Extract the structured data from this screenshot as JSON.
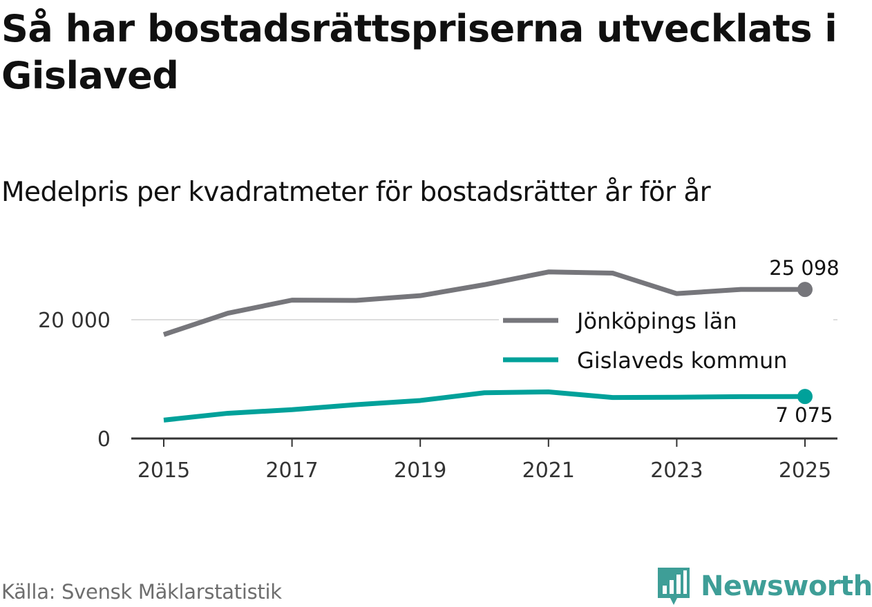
{
  "header": {
    "title": "Så har bostadsrättspriserna utvecklats i Gislaved",
    "subtitle": "Medelpris per kvadratmeter för bostadsrätter år för år"
  },
  "footer": {
    "source": "Källa: Svensk Mäklarstatistik",
    "brand": "Newsworthy"
  },
  "colors": {
    "series_lan": "#76767b",
    "series_kommun": "#00a19a",
    "grid": "#dddddd",
    "axis": "#333333",
    "brand": "#3e9e97"
  },
  "icons": {
    "brand_logo": "newsworthy-bar-chart-icon"
  },
  "chart_data": {
    "type": "line",
    "title": "Så har bostadsrättspriserna utvecklats i Gislaved",
    "subtitle": "Medelpris per kvadratmeter för bostadsrätter år för år",
    "xlabel": "",
    "ylabel": "",
    "x": [
      2015,
      2016,
      2017,
      2018,
      2019,
      2020,
      2021,
      2022,
      2023,
      2024,
      2025
    ],
    "x_ticks": [
      2015,
      2017,
      2019,
      2021,
      2023,
      2025
    ],
    "y_ticks": [
      0,
      20000
    ],
    "y_tick_labels": [
      "0",
      "20 000"
    ],
    "ylim": [
      0,
      30000
    ],
    "grid": true,
    "legend_position": "right",
    "series": [
      {
        "name": "Jönköpings län",
        "color": "#76767b",
        "values": [
          17500,
          21100,
          23300,
          23250,
          24050,
          25900,
          28050,
          27850,
          24400,
          25100,
          25098
        ],
        "end_label": "25 098"
      },
      {
        "name": "Gislaveds kommun",
        "color": "#00a19a",
        "values": [
          3100,
          4250,
          4850,
          5700,
          6400,
          7700,
          7850,
          6900,
          6950,
          7050,
          7075
        ],
        "end_label": "7 075"
      }
    ]
  }
}
